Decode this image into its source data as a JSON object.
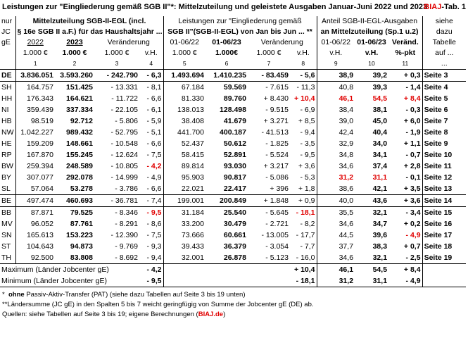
{
  "title": "Leistungen zur \"Eingliederung gemäß SGB II\"*: Mittelzuteilung und geleistete Ausgaben Januar-Juni 2022 und 2023",
  "tab_label_prefix": "BIAJ",
  "tab_label_suffix": "-Tab. 1",
  "header": {
    "nur_lines": [
      "nur",
      "JC",
      "gE"
    ],
    "group1_line1": "Mittelzuteilung SGB-II-EGL (incl.",
    "group1_line2": "§ 16e SGB II a.F.) für das Haushaltsjahr ...",
    "group2_line1": "Leistungen zur \"Eingliederung gemäß",
    "group2_line2": "SGB II\"(SGB-II-EGL) von Jan bis Jun ... **",
    "group3_line1": "Anteil SGB-II-EGL-Ausgaben",
    "group3_line2": "an  Mittelzuteilung (Sp.1 u.2)",
    "siehe_lines": [
      "siehe",
      "dazu",
      "Tabelle",
      "auf ...",
      "..."
    ],
    "col_years": [
      "2022",
      "2023",
      "Veränderung",
      "",
      "01-06/22",
      "01-06/23",
      "Veränderung",
      "",
      "01-06/22",
      "01-06/23",
      "Veränd."
    ],
    "col_units": [
      "1.000 €",
      "1.000 €",
      "1.000 €",
      "v.H.",
      "1.000 €",
      "1.000€",
      "1.000 €",
      "v.H.",
      "v.H.",
      "v.H.",
      "%-pkt"
    ],
    "col_numbers": [
      "1",
      "2",
      "3",
      "4",
      "5",
      "6",
      "7",
      "8",
      "9",
      "10",
      "11"
    ]
  },
  "rows": [
    {
      "land": "DE",
      "c1": "3.836.051",
      "c2": "3.593.260",
      "c3": "- 242.790",
      "c4": "- 6,3",
      "c5": "1.493.694",
      "c6": "1.410.235",
      "c7": "- 83.459",
      "c8": "- 5,6",
      "c9": "38,9",
      "c10": "39,2",
      "c11": "+ 0,3",
      "page": "Seite 3"
    },
    {
      "land": "SH",
      "c1": "164.757",
      "c2": "151.425",
      "c3": "- 13.331",
      "c4": "- 8,1",
      "c5": "67.184",
      "c6": "59.569",
      "c7": "- 7.615",
      "c8": "- 11,3",
      "c9": "40,8",
      "c10": "39,3",
      "c11": "- 1,4",
      "page": "Seite 4"
    },
    {
      "land": "HH",
      "c1": "176.343",
      "c2": "164.621",
      "c3": "- 11.722",
      "c4": "- 6,6",
      "c5": "81.330",
      "c6": "89.760",
      "c7": "+ 8.430",
      "c8": "+ 10,4",
      "c9": "46,1",
      "c10": "54,5",
      "c11": "+ 8,4",
      "page": "Seite 5"
    },
    {
      "land": "NI",
      "c1": "359.439",
      "c2": "337.334",
      "c3": "- 22.105",
      "c4": "- 6,1",
      "c5": "138.013",
      "c6": "128.498",
      "c7": "- 9.515",
      "c8": "- 6,9",
      "c9": "38,4",
      "c10": "38,1",
      "c11": "- 0,3",
      "page": "Seite 6"
    },
    {
      "land": "HB",
      "c1": "98.519",
      "c2": "92.712",
      "c3": "- 5.806",
      "c4": "- 5,9",
      "c5": "38.408",
      "c6": "41.679",
      "c7": "+ 3.271",
      "c8": "+ 8,5",
      "c9": "39,0",
      "c10": "45,0",
      "c11": "+ 6,0",
      "page": "Seite 7"
    },
    {
      "land": "NW",
      "c1": "1.042.227",
      "c2": "989.432",
      "c3": "- 52.795",
      "c4": "- 5,1",
      "c5": "441.700",
      "c6": "400.187",
      "c7": "- 41.513",
      "c8": "- 9,4",
      "c9": "42,4",
      "c10": "40,4",
      "c11": "- 1,9",
      "page": "Seite 8"
    },
    {
      "land": "HE",
      "c1": "159.209",
      "c2": "148.661",
      "c3": "- 10.548",
      "c4": "- 6,6",
      "c5": "52.437",
      "c6": "50.612",
      "c7": "- 1.825",
      "c8": "- 3,5",
      "c9": "32,9",
      "c10": "34,0",
      "c11": "+ 1,1",
      "page": "Seite 9"
    },
    {
      "land": "RP",
      "c1": "167.870",
      "c2": "155.245",
      "c3": "- 12.624",
      "c4": "- 7,5",
      "c5": "58.415",
      "c6": "52.891",
      "c7": "- 5.524",
      "c8": "- 9,5",
      "c9": "34,8",
      "c10": "34,1",
      "c11": "- 0,7",
      "page": "Seite 10"
    },
    {
      "land": "BW",
      "c1": "259.394",
      "c2": "248.589",
      "c3": "- 10.805",
      "c4": "- 4,2",
      "c5": "89.814",
      "c6": "93.030",
      "c7": "+ 3.217",
      "c8": "+ 3,6",
      "c9": "34,6",
      "c10": "37,4",
      "c11": "+ 2,8",
      "page": "Seite 11"
    },
    {
      "land": "BY",
      "c1": "307.077",
      "c2": "292.078",
      "c3": "- 14.999",
      "c4": "- 4,9",
      "c5": "95.903",
      "c6": "90.817",
      "c7": "- 5.086",
      "c8": "- 5,3",
      "c9": "31,2",
      "c10": "31,1",
      "c11": "- 0,1",
      "page": "Seite 12"
    },
    {
      "land": "SL",
      "c1": "57.064",
      "c2": "53.278",
      "c3": "- 3.786",
      "c4": "- 6,6",
      "c5": "22.021",
      "c6": "22.417",
      "c7": "+ 396",
      "c8": "+ 1,8",
      "c9": "38,6",
      "c10": "42,1",
      "c11": "+ 3,5",
      "page": "Seite 13"
    },
    {
      "land": "BE",
      "c1": "497.474",
      "c2": "460.693",
      "c3": "- 36.781",
      "c4": "- 7,4",
      "c5": "199.001",
      "c6": "200.849",
      "c7": "+ 1.848",
      "c8": "+ 0,9",
      "c9": "40,0",
      "c10": "43,6",
      "c11": "+ 3,6",
      "page": "Seite 14"
    },
    {
      "land": "BB",
      "c1": "87.871",
      "c2": "79.525",
      "c3": "- 8.346",
      "c4": "- 9,5",
      "c5": "31.184",
      "c6": "25.540",
      "c7": "- 5.645",
      "c8": "- 18,1",
      "c9": "35,5",
      "c10": "32,1",
      "c11": "- 3,4",
      "page": "Seite 15"
    },
    {
      "land": "MV",
      "c1": "96.052",
      "c2": "87.761",
      "c3": "- 8.291",
      "c4": "- 8,6",
      "c5": "33.200",
      "c6": "30.479",
      "c7": "- 2.721",
      "c8": "- 8,2",
      "c9": "34,6",
      "c10": "34,7",
      "c11": "+ 0,2",
      "page": "Seite 16"
    },
    {
      "land": "SN",
      "c1": "165.613",
      "c2": "153.223",
      "c3": "- 12.390",
      "c4": "- 7,5",
      "c5": "73.666",
      "c6": "60.661",
      "c7": "- 13.005",
      "c8": "- 17,7",
      "c9": "44,5",
      "c10": "39,6",
      "c11": "- 4,9",
      "page": "Seite 17"
    },
    {
      "land": "ST",
      "c1": "104.643",
      "c2": "94.873",
      "c3": "- 9.769",
      "c4": "- 9,3",
      "c5": "39.433",
      "c6": "36.379",
      "c7": "- 3.054",
      "c8": "- 7,7",
      "c9": "37,7",
      "c10": "38,3",
      "c11": "+ 0,7",
      "page": "Seite 18"
    },
    {
      "land": "TH",
      "c1": "92.500",
      "c2": "83.808",
      "c3": "- 8.692",
      "c4": "- 9,4",
      "c5": "32.001",
      "c6": "26.878",
      "c7": "- 5.123",
      "c8": "- 16,0",
      "c9": "34,6",
      "c10": "32,1",
      "c11": "- 2,5",
      "page": "Seite 19"
    }
  ],
  "summary": {
    "max_label": "Maximum (Länder Jobcenter gE)",
    "max_c4": "- 4,2",
    "max_c8": "+ 10,4",
    "max_c9": "46,1",
    "max_c10": "54,5",
    "max_c11": "+ 8,4",
    "min_label": "Minimum (Länder Jobcenter gE)",
    "min_c4": "- 9,5",
    "min_c8": "- 18,1",
    "min_c9": "31,2",
    "min_c10": "31,1",
    "min_c11": "- 4,9"
  },
  "notes": {
    "n1_mark": "*",
    "n1_bold": "ohne",
    "n1_text": "Passiv-Aktiv-Transfer (PAT) (siehe dazu Tabellen auf Seite 3 bis 19 unten)",
    "n2_mark": "**",
    "n2_text": "Ländersumme (JC gE) in den Spalten 5 bis 7  weicht geringfügig von Summe der Jobcenter gE (DE) ab.",
    "n3_text": "Quellen: siehe Tabellen auf Seite 3 bis 19; eigene Berechnungen (",
    "n3_link": "BIAJ.de",
    "n3_end": ")"
  },
  "colors": {
    "highlight_red": "#e00000",
    "text": "#000000",
    "border": "#000000"
  }
}
